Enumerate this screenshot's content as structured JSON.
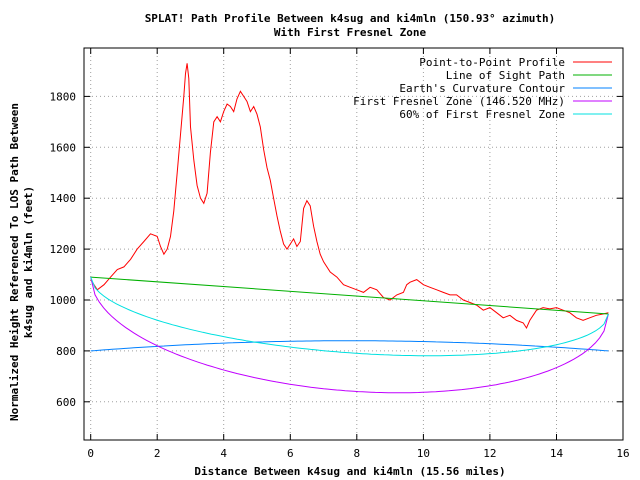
{
  "chart_data": {
    "type": "line",
    "title": "SPLAT! Path Profile Between k4sug and ki4mln (150.93° azimuth)",
    "subtitle": "With First Fresnel Zone",
    "xlabel": "Distance Between k4sug and ki4mln (15.56 miles)",
    "ylabel_line1": "Normalized Height Referenced To LOS Path Between",
    "ylabel_line2": "k4sug and ki4mln (feet)",
    "xlim": [
      -0.2,
      16
    ],
    "ylim": [
      450,
      1990
    ],
    "x_ticks": [
      0,
      2,
      4,
      6,
      8,
      10,
      12,
      14,
      16
    ],
    "y_ticks": [
      600,
      800,
      1000,
      1200,
      1400,
      1600,
      1800
    ],
    "grid": true,
    "legend_position": "top-right",
    "series": [
      {
        "name": "Point-to-Point Profile",
        "color": "#ff0000",
        "points": [
          [
            0,
            1080
          ],
          [
            0.2,
            1040
          ],
          [
            0.4,
            1060
          ],
          [
            0.6,
            1090
          ],
          [
            0.8,
            1120
          ],
          [
            1.0,
            1130
          ],
          [
            1.2,
            1160
          ],
          [
            1.4,
            1200
          ],
          [
            1.6,
            1230
          ],
          [
            1.8,
            1260
          ],
          [
            2.0,
            1250
          ],
          [
            2.1,
            1210
          ],
          [
            2.2,
            1180
          ],
          [
            2.3,
            1200
          ],
          [
            2.4,
            1250
          ],
          [
            2.5,
            1350
          ],
          [
            2.6,
            1500
          ],
          [
            2.7,
            1650
          ],
          [
            2.8,
            1800
          ],
          [
            2.85,
            1890
          ],
          [
            2.9,
            1930
          ],
          [
            2.95,
            1870
          ],
          [
            3.0,
            1680
          ],
          [
            3.1,
            1550
          ],
          [
            3.2,
            1450
          ],
          [
            3.3,
            1400
          ],
          [
            3.4,
            1380
          ],
          [
            3.5,
            1420
          ],
          [
            3.6,
            1580
          ],
          [
            3.7,
            1700
          ],
          [
            3.8,
            1720
          ],
          [
            3.9,
            1700
          ],
          [
            4.0,
            1740
          ],
          [
            4.1,
            1770
          ],
          [
            4.2,
            1760
          ],
          [
            4.3,
            1740
          ],
          [
            4.4,
            1790
          ],
          [
            4.5,
            1820
          ],
          [
            4.6,
            1800
          ],
          [
            4.7,
            1780
          ],
          [
            4.8,
            1740
          ],
          [
            4.9,
            1760
          ],
          [
            5.0,
            1730
          ],
          [
            5.1,
            1680
          ],
          [
            5.2,
            1590
          ],
          [
            5.3,
            1520
          ],
          [
            5.4,
            1470
          ],
          [
            5.5,
            1400
          ],
          [
            5.6,
            1330
          ],
          [
            5.7,
            1270
          ],
          [
            5.8,
            1220
          ],
          [
            5.9,
            1200
          ],
          [
            6.0,
            1220
          ],
          [
            6.1,
            1240
          ],
          [
            6.2,
            1210
          ],
          [
            6.3,
            1230
          ],
          [
            6.4,
            1360
          ],
          [
            6.5,
            1390
          ],
          [
            6.6,
            1370
          ],
          [
            6.7,
            1290
          ],
          [
            6.8,
            1230
          ],
          [
            6.9,
            1180
          ],
          [
            7.0,
            1150
          ],
          [
            7.2,
            1110
          ],
          [
            7.4,
            1090
          ],
          [
            7.6,
            1060
          ],
          [
            7.8,
            1050
          ],
          [
            8.0,
            1040
          ],
          [
            8.2,
            1030
          ],
          [
            8.4,
            1050
          ],
          [
            8.6,
            1040
          ],
          [
            8.8,
            1010
          ],
          [
            9.0,
            1000
          ],
          [
            9.2,
            1020
          ],
          [
            9.4,
            1030
          ],
          [
            9.5,
            1060
          ],
          [
            9.6,
            1070
          ],
          [
            9.8,
            1080
          ],
          [
            10.0,
            1060
          ],
          [
            10.2,
            1050
          ],
          [
            10.4,
            1040
          ],
          [
            10.6,
            1030
          ],
          [
            10.8,
            1020
          ],
          [
            11.0,
            1020
          ],
          [
            11.2,
            1000
          ],
          [
            11.4,
            990
          ],
          [
            11.6,
            980
          ],
          [
            11.8,
            960
          ],
          [
            12.0,
            970
          ],
          [
            12.2,
            950
          ],
          [
            12.4,
            930
          ],
          [
            12.6,
            940
          ],
          [
            12.8,
            920
          ],
          [
            13.0,
            910
          ],
          [
            13.1,
            890
          ],
          [
            13.2,
            920
          ],
          [
            13.4,
            960
          ],
          [
            13.6,
            970
          ],
          [
            13.8,
            965
          ],
          [
            14.0,
            970
          ],
          [
            14.2,
            960
          ],
          [
            14.4,
            950
          ],
          [
            14.6,
            930
          ],
          [
            14.8,
            920
          ],
          [
            15.0,
            930
          ],
          [
            15.2,
            940
          ],
          [
            15.4,
            945
          ],
          [
            15.56,
            950
          ]
        ]
      },
      {
        "name": "Line of Sight Path",
        "color": "#00b000",
        "points": [
          [
            0,
            1090
          ],
          [
            15.56,
            945
          ]
        ]
      },
      {
        "name": "Earth's Curvature Contour",
        "color": "#0080ff",
        "curve": "parabola",
        "endpoints": [
          800,
          800
        ],
        "peak": 840
      },
      {
        "name": "First Fresnel Zone (146.520 MHz)",
        "color": "#c000ff",
        "curve": "ellipse",
        "endpoints": [
          1090,
          945
        ],
        "depth": 375
      },
      {
        "name": "60% of First Fresnel Zone",
        "color": "#00e0e0",
        "curve": "ellipse",
        "endpoints": [
          1090,
          945
        ],
        "depth": 225
      }
    ]
  }
}
